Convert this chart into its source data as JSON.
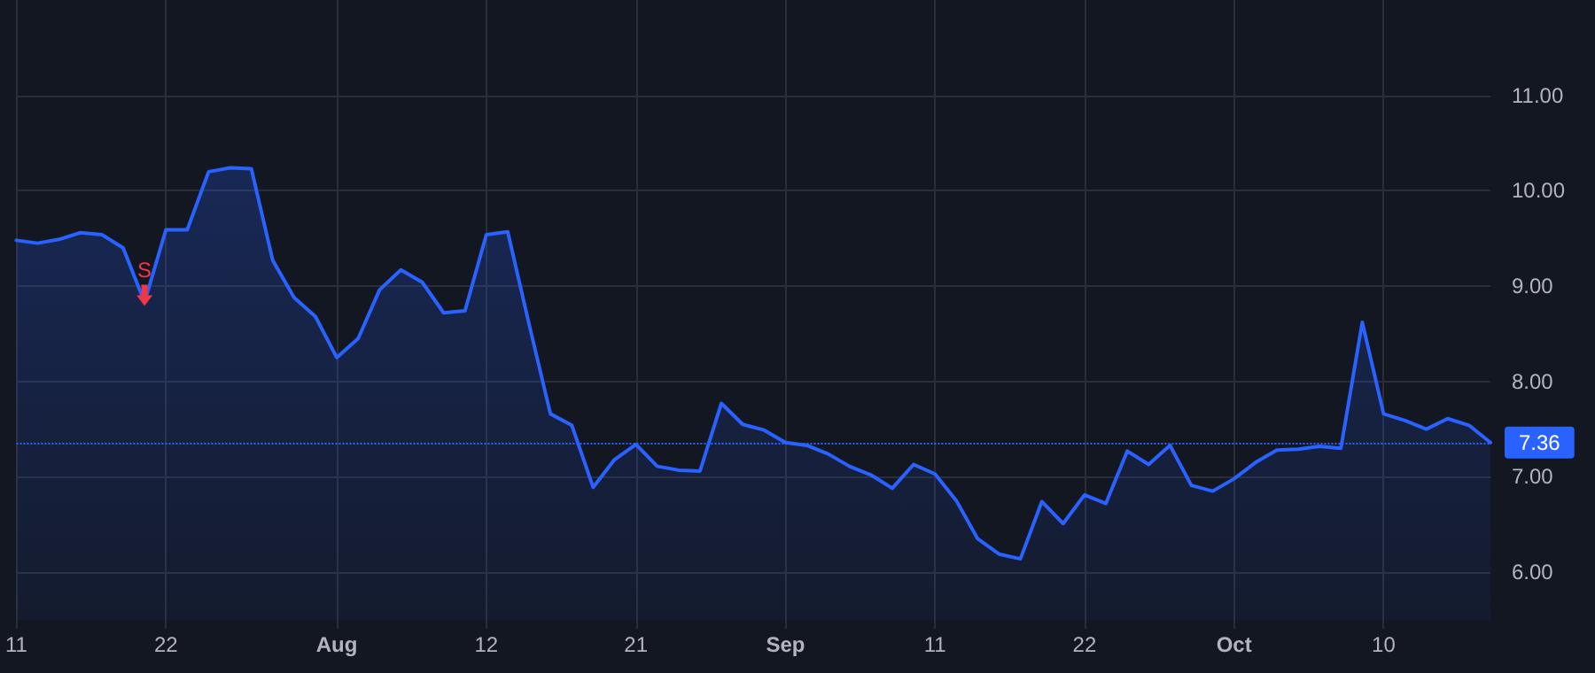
{
  "chart_data": {
    "type": "area",
    "categories": [
      "11",
      null,
      null,
      null,
      null,
      null,
      null,
      "22",
      null,
      null,
      null,
      null,
      null,
      null,
      null,
      "Aug",
      null,
      null,
      null,
      null,
      null,
      null,
      "12",
      null,
      null,
      null,
      null,
      null,
      null,
      "21",
      null,
      null,
      null,
      null,
      null,
      null,
      "Sep",
      null,
      null,
      null,
      null,
      null,
      null,
      "11",
      null,
      null,
      null,
      null,
      null,
      null,
      "22",
      null,
      null,
      null,
      null,
      null,
      null,
      "Oct",
      null,
      null,
      null,
      null,
      null,
      null,
      "10",
      null,
      null,
      null,
      null,
      null
    ],
    "series": [
      {
        "color": "#2962ff",
        "values": [
          9.48,
          9.45,
          9.49,
          9.56,
          9.54,
          9.4,
          8.83,
          9.59,
          9.59,
          10.2,
          10.24,
          10.23,
          9.27,
          8.88,
          8.68,
          8.25,
          8.45,
          8.96,
          9.17,
          9.04,
          8.72,
          8.74,
          9.54,
          9.57,
          8.6,
          7.66,
          7.54,
          6.89,
          7.18,
          7.34,
          7.11,
          7.07,
          7.06,
          7.77,
          7.55,
          7.49,
          7.36,
          7.33,
          7.24,
          7.11,
          7.02,
          6.88,
          7.13,
          7.03,
          6.75,
          6.35,
          6.19,
          6.14,
          6.74,
          6.51,
          6.81,
          6.72,
          7.27,
          7.13,
          7.33,
          6.91,
          6.85,
          6.98,
          7.15,
          7.28,
          7.29,
          7.32,
          7.3,
          8.62,
          7.66,
          7.59,
          7.5,
          7.61,
          7.54,
          7.36
        ]
      }
    ],
    "ylim": [
      5.5,
      12
    ],
    "yticks": [
      {
        "value": 6,
        "label": "6.00"
      },
      {
        "value": 7,
        "label": "7.00"
      },
      {
        "value": 8,
        "label": "8.00"
      },
      {
        "value": 9,
        "label": "9.00"
      },
      {
        "value": 10,
        "label": "10.00"
      },
      {
        "value": 11,
        "label": "11.00"
      }
    ],
    "ref_lines": [
      {
        "axis": "y",
        "value": 7.36,
        "label": "7.36",
        "color": "#2962ff",
        "line_style": "dotted"
      }
    ],
    "annotations": [
      {
        "text": "S",
        "y": 8.83
      }
    ],
    "grid": true,
    "marker": "none",
    "line_style": "solid"
  }
}
